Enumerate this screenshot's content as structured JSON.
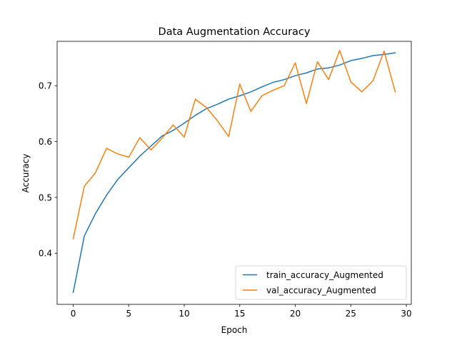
{
  "chart_data": {
    "type": "line",
    "title": "Data Augmentation Accuracy",
    "xlabel": "Epoch",
    "ylabel": "Accuracy",
    "xlim": [
      -1.45,
      30.45
    ],
    "ylim": [
      0.3085,
      0.7795
    ],
    "xticks": [
      0,
      5,
      10,
      15,
      20,
      25,
      30
    ],
    "yticks": [
      0.4,
      0.5,
      0.6,
      0.7
    ],
    "grid": false,
    "legend_position": "lower right",
    "x": [
      0,
      1,
      2,
      3,
      4,
      5,
      6,
      7,
      8,
      9,
      10,
      11,
      12,
      13,
      14,
      15,
      16,
      17,
      18,
      19,
      20,
      21,
      22,
      23,
      24,
      25,
      26,
      27,
      28,
      29
    ],
    "series": [
      {
        "name": "train_accuracy_Augmented",
        "color": "#1f77b4",
        "values": [
          0.33,
          0.431,
          0.471,
          0.504,
          0.532,
          0.553,
          0.574,
          0.592,
          0.61,
          0.62,
          0.633,
          0.647,
          0.659,
          0.667,
          0.676,
          0.682,
          0.689,
          0.698,
          0.706,
          0.711,
          0.718,
          0.723,
          0.73,
          0.732,
          0.737,
          0.745,
          0.749,
          0.754,
          0.756,
          0.759
        ]
      },
      {
        "name": "val_accuracy_Augmented",
        "color": "#ff7f0e",
        "values": [
          0.426,
          0.52,
          0.544,
          0.588,
          0.578,
          0.572,
          0.607,
          0.585,
          0.606,
          0.63,
          0.608,
          0.676,
          0.661,
          0.637,
          0.609,
          0.703,
          0.654,
          0.682,
          0.692,
          0.7,
          0.741,
          0.668,
          0.743,
          0.711,
          0.763,
          0.707,
          0.689,
          0.709,
          0.762,
          0.689
        ]
      }
    ]
  }
}
